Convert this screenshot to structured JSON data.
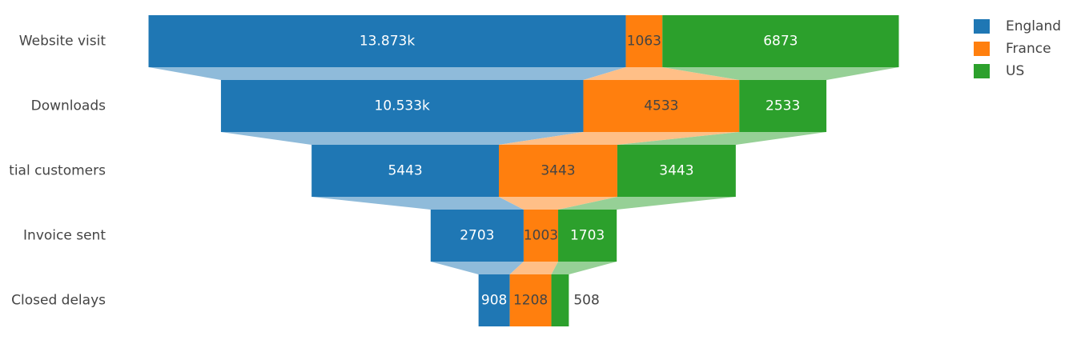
{
  "chart_data": {
    "type": "funnel",
    "categories": [
      "Website visit",
      "Downloads",
      "Potential customers",
      "Invoice sent",
      "Closed delays"
    ],
    "series": [
      {
        "name": "England",
        "color": "#1f77b4",
        "values": [
          13873,
          10533,
          5443,
          2703,
          908
        ],
        "value_labels": [
          "13.873k",
          "10.533k",
          "5443",
          "2703",
          "908"
        ]
      },
      {
        "name": "France",
        "color": "#ff7f0e",
        "values": [
          1063,
          4533,
          3443,
          1003,
          1208
        ],
        "value_labels": [
          "1063",
          "4533",
          "3443",
          "1003",
          "1208"
        ]
      },
      {
        "name": "US",
        "color": "#2ca02c",
        "values": [
          6873,
          2533,
          3443,
          1703,
          508
        ],
        "value_labels": [
          "6873",
          "2533",
          "3443",
          "1703",
          "508"
        ]
      }
    ],
    "legend_position": "top-right",
    "title": "",
    "xlabel": "",
    "ylabel": ""
  }
}
